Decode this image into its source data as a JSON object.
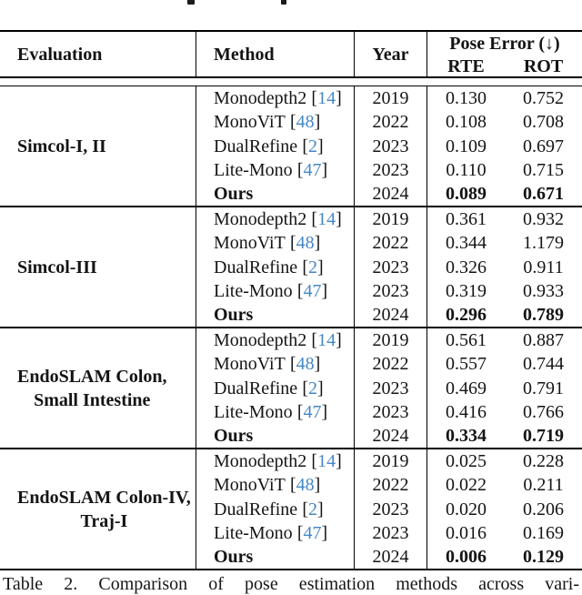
{
  "table": {
    "header": {
      "evaluation": "Evaluation",
      "method": "Method",
      "year": "Year",
      "pose_error": "Pose Error (↓)",
      "rte": "RTE",
      "rot": "ROT"
    },
    "citation_format": {
      "open": "[",
      "close": "]"
    },
    "groups": [
      {
        "evaluation_lines": [
          "Simcol-I, II"
        ],
        "rows": [
          {
            "method": "Monodepth2",
            "cite": "14",
            "year": "2019",
            "rte": "0.130",
            "rot": "0.752"
          },
          {
            "method": "MonoViT",
            "cite": "48",
            "year": "2022",
            "rte": "0.108",
            "rot": "0.708"
          },
          {
            "method": "DualRefine",
            "cite": "2",
            "year": "2023",
            "rte": "0.109",
            "rot": "0.697"
          },
          {
            "method": "Lite-Mono",
            "cite": "47",
            "year": "2023",
            "rte": "0.110",
            "rot": "0.715"
          },
          {
            "method": "Ours",
            "year": "2024",
            "rte": "0.089",
            "rot": "0.671"
          }
        ]
      },
      {
        "evaluation_lines": [
          "Simcol-III"
        ],
        "rows": [
          {
            "method": "Monodepth2",
            "cite": "14",
            "year": "2019",
            "rte": "0.361",
            "rot": "0.932"
          },
          {
            "method": "MonoViT",
            "cite": "48",
            "year": "2022",
            "rte": "0.344",
            "rot": "1.179"
          },
          {
            "method": "DualRefine",
            "cite": "2",
            "year": "2023",
            "rte": "0.326",
            "rot": "0.911"
          },
          {
            "method": "Lite-Mono",
            "cite": "47",
            "year": "2023",
            "rte": "0.319",
            "rot": "0.933"
          },
          {
            "method": "Ours",
            "year": "2024",
            "rte": "0.296",
            "rot": "0.789"
          }
        ]
      },
      {
        "evaluation_lines": [
          "EndoSLAM Colon,",
          "Small Intestine"
        ],
        "rows": [
          {
            "method": "Monodepth2",
            "cite": "14",
            "year": "2019",
            "rte": "0.561",
            "rot": "0.887"
          },
          {
            "method": "MonoViT",
            "cite": "48",
            "year": "2022",
            "rte": "0.557",
            "rot": "0.744"
          },
          {
            "method": "DualRefine",
            "cite": "2",
            "year": "2023",
            "rte": "0.469",
            "rot": "0.791"
          },
          {
            "method": "Lite-Mono",
            "cite": "47",
            "year": "2023",
            "rte": "0.416",
            "rot": "0.766"
          },
          {
            "method": "Ours",
            "year": "2024",
            "rte": "0.334",
            "rot": "0.719"
          }
        ]
      },
      {
        "evaluation_lines": [
          "EndoSLAM Colon-IV,",
          "Traj-I"
        ],
        "rows": [
          {
            "method": "Monodepth2",
            "cite": "14",
            "year": "2019",
            "rte": "0.025",
            "rot": "0.228"
          },
          {
            "method": "MonoViT",
            "cite": "48",
            "year": "2022",
            "rte": "0.022",
            "rot": "0.211"
          },
          {
            "method": "DualRefine",
            "cite": "2",
            "year": "2023",
            "rte": "0.020",
            "rot": "0.206"
          },
          {
            "method": "Lite-Mono",
            "cite": "47",
            "year": "2023",
            "rte": "0.016",
            "rot": "0.169"
          },
          {
            "method": "Ours",
            "year": "2024",
            "rte": "0.006",
            "rot": "0.129"
          }
        ]
      }
    ]
  },
  "caption": "Table 2. Comparison of pose estimation methods across vari-",
  "colors": {
    "citation": "#4487c6",
    "text": "#141414",
    "rule": "#000000"
  }
}
